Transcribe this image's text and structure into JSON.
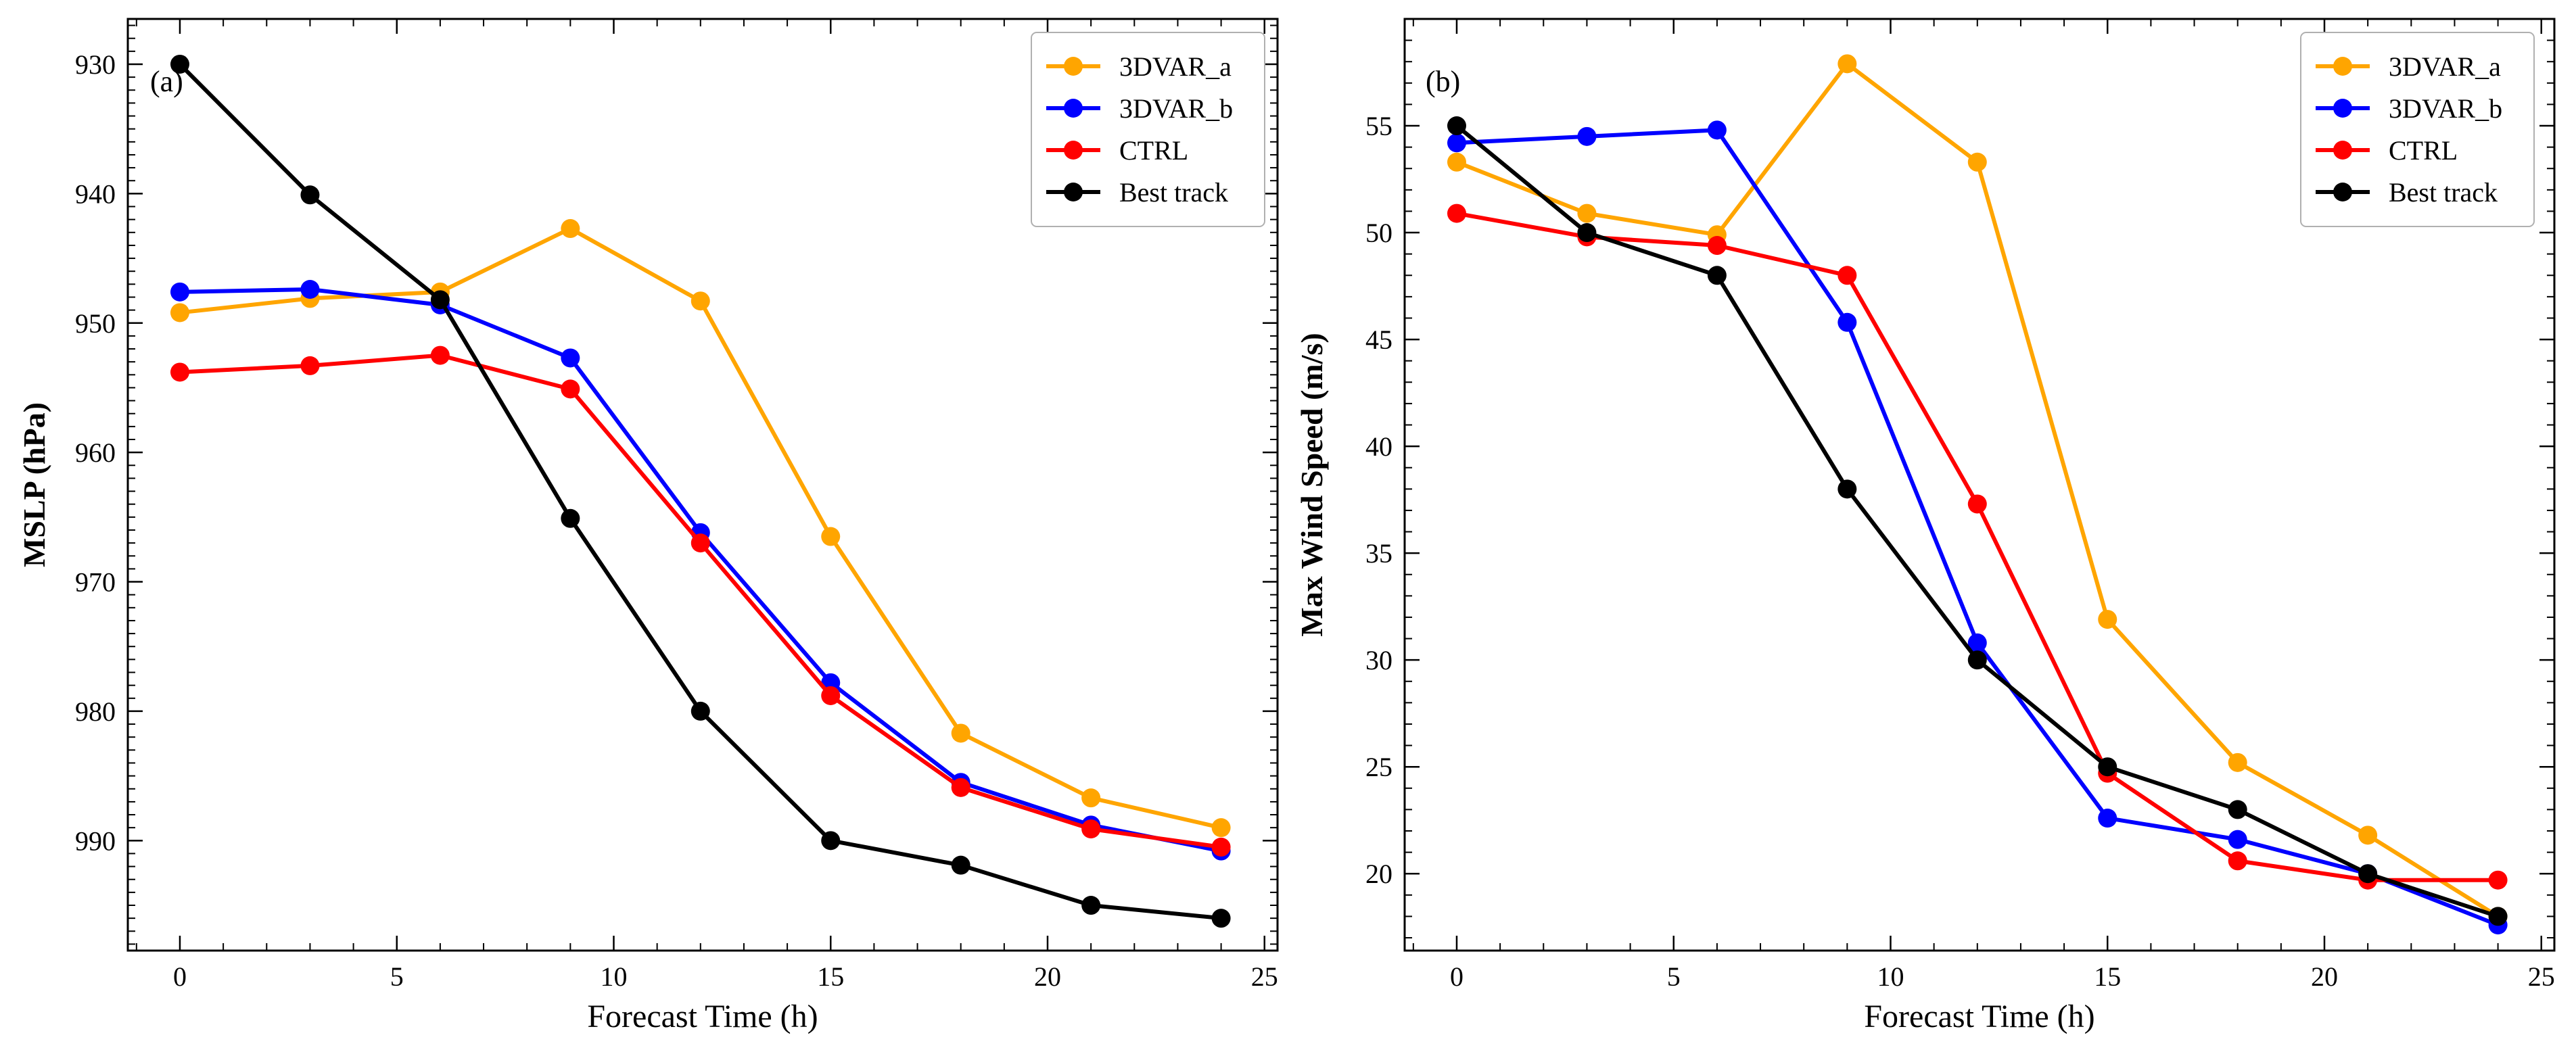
{
  "figure": {
    "colors": {
      "3DVAR_a": "#FFA500",
      "3DVAR_b": "#0000FF",
      "CTRL": "#FF0000",
      "Best track": "#000000"
    }
  },
  "chart_data": [
    {
      "type": "line",
      "panel_label": "(a)",
      "title": "",
      "xlabel": "Forecast Time (h)",
      "ylabel": "MSLP (hPa)",
      "xlim": [
        -1.2,
        25.3
      ],
      "ylim": [
        998.5,
        926.5
      ],
      "y_inverted": true,
      "xticks": [
        0,
        5,
        10,
        15,
        20,
        25
      ],
      "yticks": [
        930,
        940,
        950,
        960,
        970,
        980,
        990
      ],
      "grid": false,
      "legend_position": "top-right",
      "x": [
        0,
        3,
        6,
        9,
        12,
        15,
        18,
        21,
        24
      ],
      "series": [
        {
          "name": "3DVAR_a",
          "color": "#FFA500",
          "values": [
            949.2,
            948.1,
            947.6,
            942.7,
            948.3,
            966.5,
            981.7,
            986.7,
            989.0
          ]
        },
        {
          "name": "3DVAR_b",
          "color": "#0000FF",
          "values": [
            947.6,
            947.4,
            948.6,
            952.7,
            966.2,
            977.8,
            985.5,
            988.8,
            990.8
          ]
        },
        {
          "name": "CTRL",
          "color": "#FF0000",
          "values": [
            953.8,
            953.3,
            952.5,
            955.1,
            967.0,
            978.8,
            985.9,
            989.1,
            990.5
          ]
        },
        {
          "name": "Best track",
          "color": "#000000",
          "values": [
            930.0,
            940.1,
            948.2,
            965.1,
            980.0,
            990.0,
            991.9,
            995.0,
            996.0
          ]
        }
      ]
    },
    {
      "type": "line",
      "panel_label": "(b)",
      "title": "",
      "xlabel": "Forecast Time (h)",
      "ylabel": "Max Wind Speed (m/s)",
      "xlim": [
        -1.2,
        25.3
      ],
      "ylim": [
        16.4,
        60.0
      ],
      "y_inverted": false,
      "xticks": [
        0,
        5,
        10,
        15,
        20,
        25
      ],
      "yticks": [
        20,
        25,
        30,
        35,
        40,
        45,
        50,
        55
      ],
      "grid": false,
      "legend_position": "top-right",
      "x": [
        0,
        3,
        6,
        9,
        12,
        15,
        18,
        21,
        24
      ],
      "series": [
        {
          "name": "3DVAR_a",
          "color": "#FFA500",
          "values": [
            53.3,
            50.9,
            49.9,
            57.9,
            53.3,
            31.9,
            25.2,
            21.8,
            18.0
          ]
        },
        {
          "name": "3DVAR_b",
          "color": "#0000FF",
          "values": [
            54.2,
            54.5,
            54.8,
            45.8,
            30.8,
            22.6,
            21.6,
            20.0,
            17.6
          ]
        },
        {
          "name": "CTRL",
          "color": "#FF0000",
          "values": [
            50.9,
            49.8,
            49.4,
            48.0,
            37.3,
            24.7,
            20.6,
            19.7,
            19.7
          ]
        },
        {
          "name": "Best track",
          "color": "#000000",
          "values": [
            55.0,
            50.0,
            48.0,
            38.0,
            30.0,
            25.0,
            23.0,
            20.0,
            18.0
          ]
        }
      ]
    }
  ]
}
